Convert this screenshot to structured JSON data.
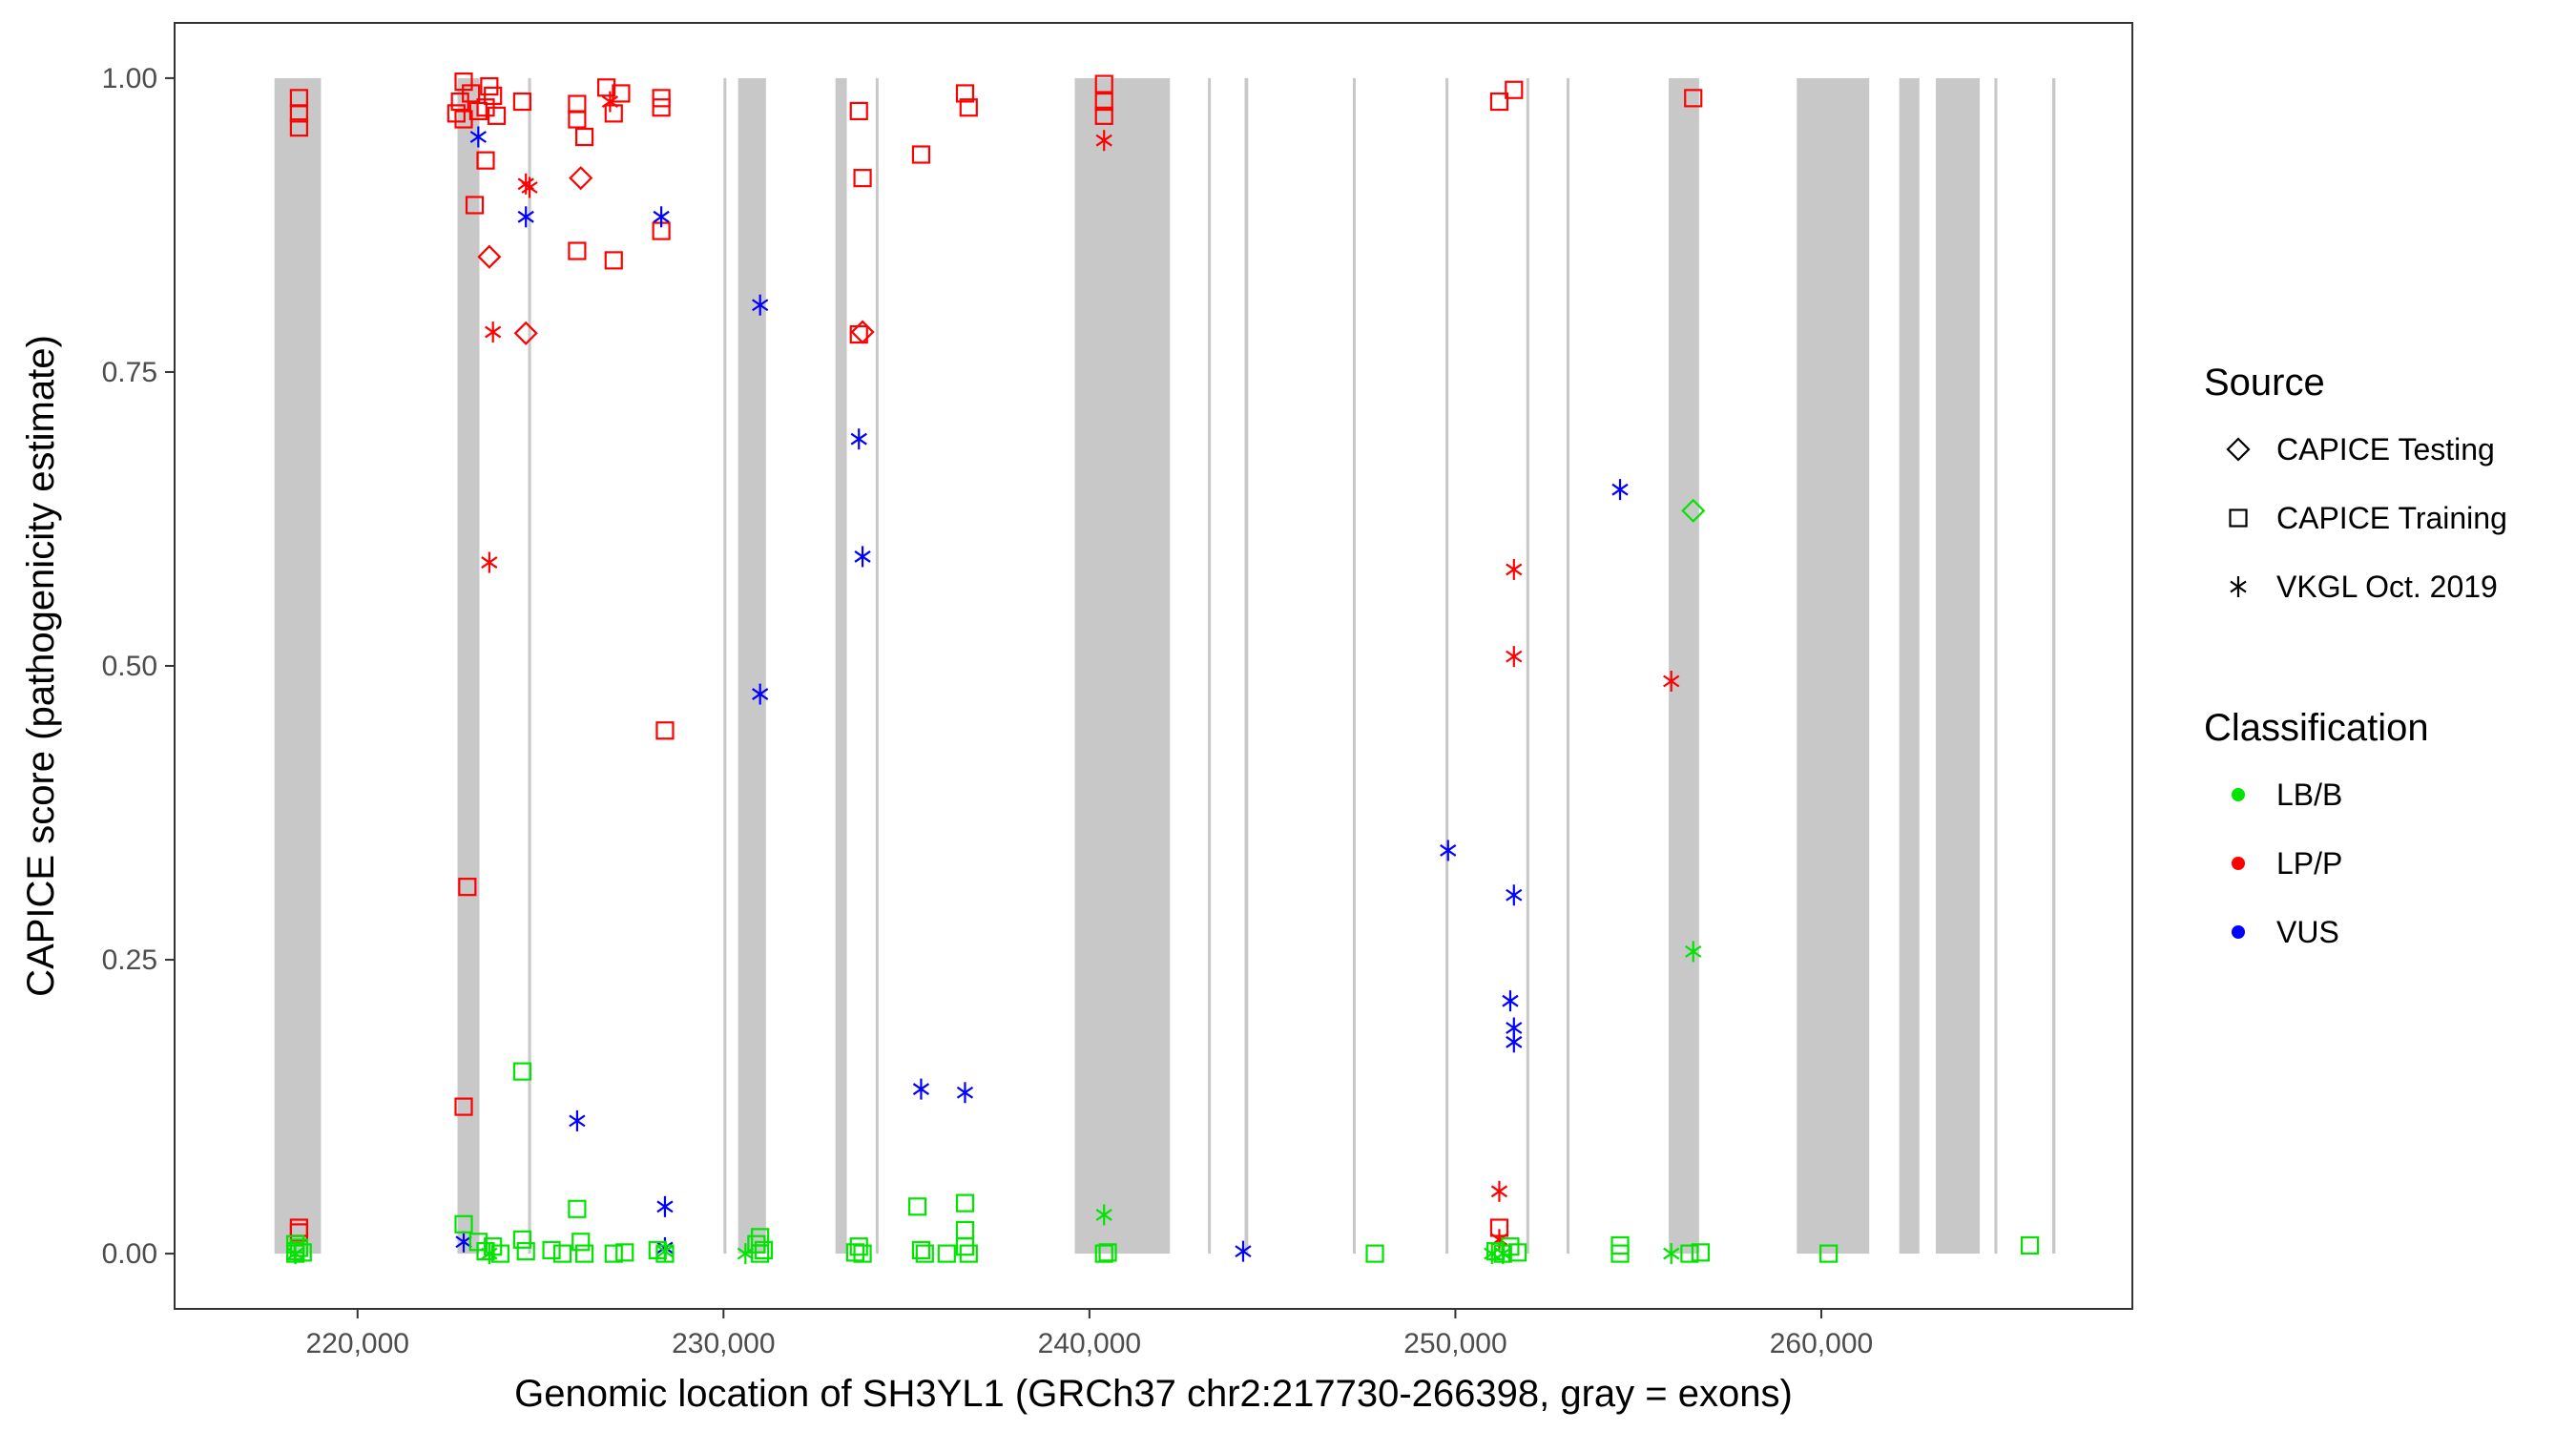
{
  "chart_data": {
    "type": "scatter",
    "xlabel": "Genomic location of SH3YL1 (GRCh37 chr2:217730-266398, gray = exons)",
    "ylabel": "CAPICE score (pathogenicity estimate)",
    "xlim": [
      215000,
      268500
    ],
    "ylim": [
      -0.047,
      1.047
    ],
    "x_ticks": [
      220000,
      230000,
      240000,
      250000,
      260000
    ],
    "x_tick_labels": [
      "220,000",
      "230,000",
      "240,000",
      "250,000",
      "260,000"
    ],
    "y_ticks": [
      0,
      0.25,
      0.5,
      0.75,
      1.0
    ],
    "y_tick_labels": [
      "0.00",
      "0.25",
      "0.50",
      "0.75",
      "1.00"
    ],
    "grid": false,
    "exons": [
      [
        217730,
        219000
      ],
      [
        222730,
        223330
      ],
      [
        224660,
        224740
      ],
      [
        230000,
        230080
      ],
      [
        230400,
        231160
      ],
      [
        233060,
        233370
      ],
      [
        234160,
        234230
      ],
      [
        239600,
        242200
      ],
      [
        243240,
        243310
      ],
      [
        244240,
        244340
      ],
      [
        247200,
        247270
      ],
      [
        249730,
        249810
      ],
      [
        251940,
        252010
      ],
      [
        253040,
        253110
      ],
      [
        255830,
        256660
      ],
      [
        259330,
        261310
      ],
      [
        262130,
        262680
      ],
      [
        263130,
        264330
      ],
      [
        264730,
        264810
      ],
      [
        266310,
        266398
      ]
    ],
    "legend": {
      "position": "right",
      "source_title": "Source",
      "source_items": [
        {
          "label": "CAPICE Testing",
          "shape": "diamond"
        },
        {
          "label": "CAPICE Training",
          "shape": "square"
        },
        {
          "label": "VKGL Oct. 2019",
          "shape": "asterisk"
        }
      ],
      "class_title": "Classification",
      "class_items": [
        {
          "label": "LB/B",
          "color": "#00e400"
        },
        {
          "label": "LP/P",
          "color": "#ff0000"
        },
        {
          "label": "VUS",
          "color": "#0000ff"
        }
      ]
    },
    "series": [
      {
        "source": "CAPICE Training",
        "class": "LP/P",
        "color": "#ff0000",
        "shape": "square",
        "points": [
          [
            218400,
            0.983
          ],
          [
            218400,
            0.97
          ],
          [
            218400,
            0.958
          ],
          [
            218400,
            0.022
          ],
          [
            218400,
            0.018
          ],
          [
            222900,
            0.997
          ],
          [
            222800,
            0.98
          ],
          [
            222700,
            0.97
          ],
          [
            222900,
            0.965
          ],
          [
            223100,
            0.987
          ],
          [
            223300,
            0.972
          ],
          [
            223600,
            0.993
          ],
          [
            223700,
            0.985
          ],
          [
            223500,
            0.975
          ],
          [
            223800,
            0.968
          ],
          [
            223500,
            0.93
          ],
          [
            223200,
            0.892
          ],
          [
            223000,
            0.312
          ],
          [
            222900,
            0.125
          ],
          [
            224500,
            0.98
          ],
          [
            226000,
            0.978
          ],
          [
            226000,
            0.965
          ],
          [
            226200,
            0.95
          ],
          [
            226000,
            0.853
          ],
          [
            226800,
            0.992
          ],
          [
            227200,
            0.987
          ],
          [
            227000,
            0.97
          ],
          [
            227000,
            0.845
          ],
          [
            228300,
            0.983
          ],
          [
            228300,
            0.975
          ],
          [
            228300,
            0.87
          ],
          [
            228400,
            0.445
          ],
          [
            233700,
            0.972
          ],
          [
            233800,
            0.915
          ],
          [
            233700,
            0.782
          ],
          [
            235400,
            0.935
          ],
          [
            236600,
            0.987
          ],
          [
            236700,
            0.975
          ],
          [
            240400,
            0.995
          ],
          [
            240400,
            0.98
          ],
          [
            240400,
            0.968
          ],
          [
            251200,
            0.98
          ],
          [
            251600,
            0.99
          ],
          [
            251200,
            0.022
          ],
          [
            256500,
            0.983
          ]
        ]
      },
      {
        "source": "CAPICE Testing",
        "class": "LP/P",
        "color": "#ff0000",
        "shape": "diamond",
        "points": [
          [
            223600,
            0.848
          ],
          [
            224600,
            0.783
          ],
          [
            226100,
            0.915
          ],
          [
            233800,
            0.784
          ]
        ]
      },
      {
        "source": "VKGL Oct. 2019",
        "class": "LP/P",
        "color": "#ff0000",
        "shape": "asterisk",
        "points": [
          [
            223600,
            0.588
          ],
          [
            223700,
            0.784
          ],
          [
            224600,
            0.91
          ],
          [
            224700,
            0.907
          ],
          [
            226900,
            0.98
          ],
          [
            240400,
            0.947
          ],
          [
            251200,
            0.053
          ],
          [
            251600,
            0.582
          ],
          [
            251600,
            0.508
          ],
          [
            255900,
            0.487
          ],
          [
            251200,
            0.012
          ]
        ]
      },
      {
        "source": "VKGL Oct. 2019",
        "class": "VUS",
        "color": "#0000ff",
        "shape": "asterisk",
        "points": [
          [
            223300,
            0.95
          ],
          [
            224600,
            0.882
          ],
          [
            226000,
            0.113
          ],
          [
            228300,
            0.882
          ],
          [
            228400,
            0.04
          ],
          [
            228400,
            0.005
          ],
          [
            222900,
            0.01
          ],
          [
            231000,
            0.807
          ],
          [
            231000,
            0.476
          ],
          [
            233700,
            0.693
          ],
          [
            233800,
            0.593
          ],
          [
            235400,
            0.14
          ],
          [
            236600,
            0.137
          ],
          [
            244200,
            0.002
          ],
          [
            249800,
            0.343
          ],
          [
            251600,
            0.305
          ],
          [
            251500,
            0.215
          ],
          [
            251600,
            0.192
          ],
          [
            251600,
            0.18
          ],
          [
            254500,
            0.65
          ]
        ]
      },
      {
        "source": "CAPICE Training",
        "class": "LB/B",
        "color": "#00e400",
        "shape": "square",
        "points": [
          [
            218300,
            0.0
          ],
          [
            218300,
            0.002
          ],
          [
            218500,
            0.001
          ],
          [
            218400,
            0.005
          ],
          [
            218300,
            0.008
          ],
          [
            222900,
            0.025
          ],
          [
            223300,
            0.01
          ],
          [
            223500,
            0.002
          ],
          [
            223700,
            0.006
          ],
          [
            223900,
            0.0
          ],
          [
            224500,
            0.155
          ],
          [
            224500,
            0.012
          ],
          [
            224600,
            0.002
          ],
          [
            225300,
            0.003
          ],
          [
            225600,
            0.0
          ],
          [
            226000,
            0.038
          ],
          [
            226100,
            0.01
          ],
          [
            226200,
            0.0
          ],
          [
            227000,
            0.0
          ],
          [
            227300,
            0.001
          ],
          [
            228200,
            0.003
          ],
          [
            228400,
            0.0
          ],
          [
            231000,
            0.014
          ],
          [
            230900,
            0.008
          ],
          [
            231100,
            0.003
          ],
          [
            231000,
            0.0
          ],
          [
            233700,
            0.006
          ],
          [
            233800,
            0.0
          ],
          [
            233600,
            0.001
          ],
          [
            235300,
            0.04
          ],
          [
            235400,
            0.003
          ],
          [
            235500,
            0.0
          ],
          [
            236100,
            0.0
          ],
          [
            236600,
            0.043
          ],
          [
            236600,
            0.02
          ],
          [
            236600,
            0.006
          ],
          [
            236700,
            0.0
          ],
          [
            240400,
            0.0
          ],
          [
            240500,
            0.001
          ],
          [
            247800,
            0.0
          ],
          [
            251100,
            0.002
          ],
          [
            251300,
            0.0
          ],
          [
            251500,
            0.006
          ],
          [
            251700,
            0.001
          ],
          [
            254500,
            0.007
          ],
          [
            254500,
            0.0
          ],
          [
            256400,
            0.0
          ],
          [
            256700,
            0.001
          ],
          [
            260200,
            0.0
          ],
          [
            265700,
            0.007
          ]
        ]
      },
      {
        "source": "CAPICE Testing",
        "class": "LB/B",
        "color": "#00e400",
        "shape": "diamond",
        "points": [
          [
            256500,
            0.632
          ]
        ]
      },
      {
        "source": "VKGL Oct. 2019",
        "class": "LB/B",
        "color": "#00e400",
        "shape": "asterisk",
        "points": [
          [
            218300,
            0.0
          ],
          [
            223600,
            0.0
          ],
          [
            228400,
            0.002
          ],
          [
            230600,
            0.0
          ],
          [
            240400,
            0.033
          ],
          [
            251000,
            0.0
          ],
          [
            251300,
            0.0
          ],
          [
            255900,
            0.0
          ],
          [
            256500,
            0.257
          ]
        ]
      }
    ]
  }
}
